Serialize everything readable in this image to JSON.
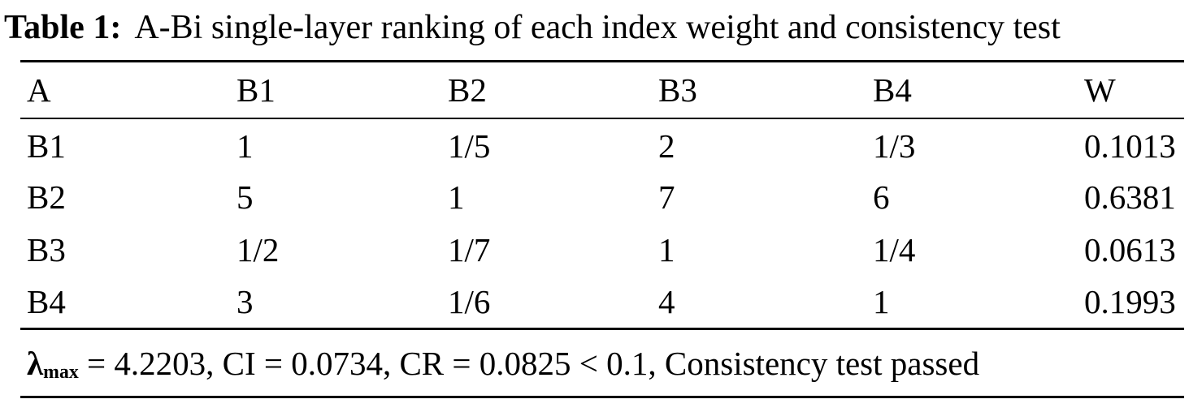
{
  "title": {
    "label": "Table 1:",
    "text": "A-Bi single-layer ranking of each index weight and consistency test"
  },
  "table": {
    "columns": [
      "A",
      "B1",
      "B2",
      "B3",
      "B4",
      "W"
    ],
    "rows": [
      {
        "cells": [
          "B1",
          "1",
          "1/5",
          "2",
          "1/3",
          "0.1013"
        ]
      },
      {
        "cells": [
          "B2",
          "5",
          "1",
          "7",
          "6",
          "0.6381"
        ]
      },
      {
        "cells": [
          "B3",
          "1/2",
          "1/7",
          "1",
          "1/4",
          "0.0613"
        ]
      },
      {
        "cells": [
          "B4",
          "3",
          "1/6",
          "4",
          "1",
          "0.1993"
        ]
      }
    ],
    "footer": {
      "lambda_symbol": "λ",
      "lambda_subscript": "max",
      "text": " = 4.2203, CI = 0.0734, CR = 0.0825 < 0.1, Consistency test passed"
    }
  },
  "colors": {
    "text": "#000000",
    "background": "#ffffff",
    "rule": "#000000"
  }
}
